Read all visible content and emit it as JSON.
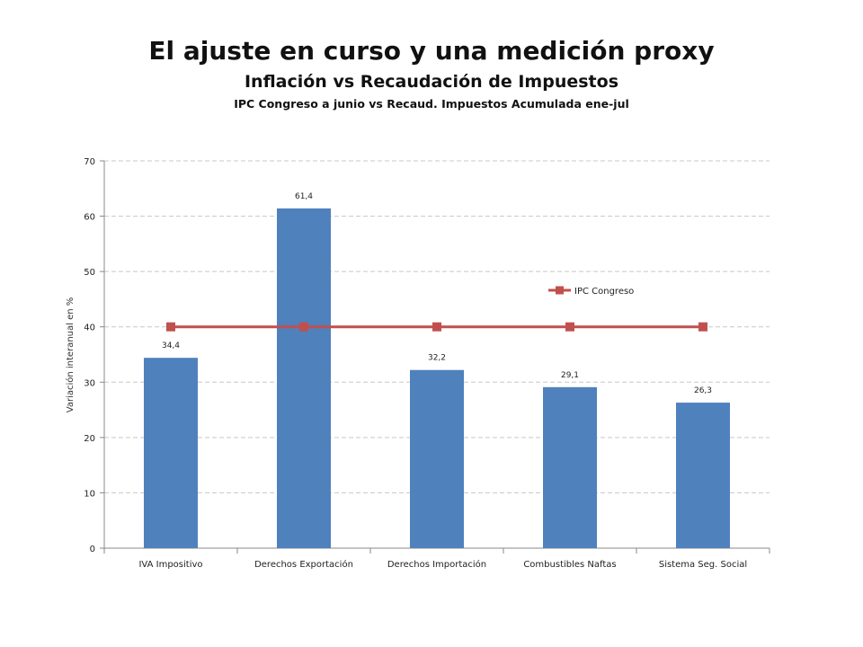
{
  "title": "El ajuste en curso y una medición proxy",
  "subtitle": "Inflación vs Recaudación de Impuestos",
  "subsubtitle": "IPC Congreso a junio vs Recaud. Impuestos Acumulada ene-jul",
  "chart_data": {
    "type": "bar",
    "categories": [
      "IVA Impositivo",
      "Derechos  Exportación",
      "Derechos  Importación",
      "Combustibles Naftas",
      "Sistema Seg. Social"
    ],
    "series": [
      {
        "type": "bar",
        "values": [
          34.4,
          61.4,
          32.2,
          29.1,
          26.3
        ],
        "value_labels": [
          "34,4",
          "61,4",
          "32,2",
          "29,1",
          "26,3"
        ],
        "color": "#4f81bd"
      },
      {
        "name": "IPC Congreso",
        "type": "line",
        "values": [
          40,
          40,
          40,
          40,
          40
        ],
        "color": "#c0504d"
      }
    ],
    "xlabel": "",
    "ylabel": "Variación interanual en %",
    "ylim": [
      0,
      70
    ],
    "yticks": [
      "0",
      "10",
      "20",
      "30",
      "40",
      "50",
      "60",
      "70"
    ],
    "grid": true,
    "legend_position": "right"
  }
}
